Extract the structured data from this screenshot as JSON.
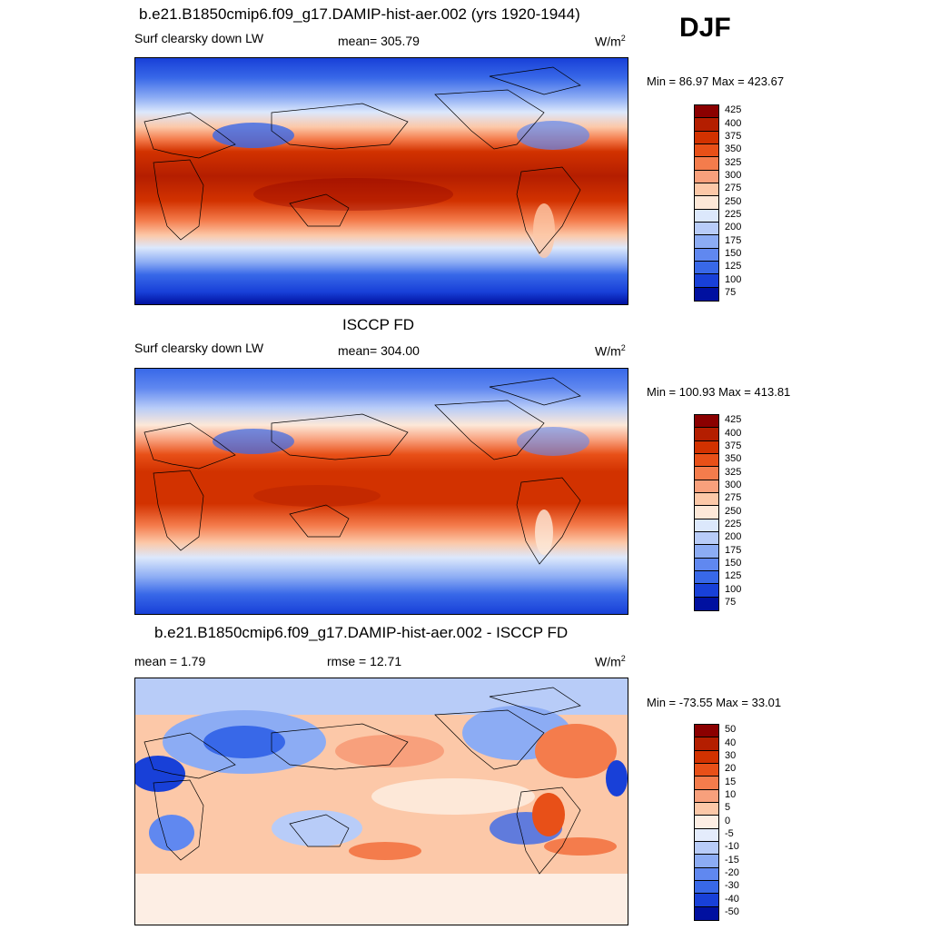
{
  "season": "DJF",
  "unit_base": "W/m",
  "unit_exp": "2",
  "panels": [
    {
      "title": "b.e21.B1850cmip6.f09_g17.DAMIP-hist-aer.002 (yrs 1920-1944)",
      "left_label": "Surf clearsky down LW",
      "center_label": "mean= 305.79",
      "minmax": "Min =  86.97 Max = 423.67",
      "levels": [
        "425",
        "400",
        "375",
        "350",
        "325",
        "300",
        "275",
        "250",
        "225",
        "200",
        "175",
        "150",
        "125",
        "100",
        "75"
      ],
      "colors": [
        "#8b0000",
        "#b41e00",
        "#d23200",
        "#e85018",
        "#f47c4c",
        "#f8a07c",
        "#fcc8a8",
        "#fde8d8",
        "#dce8fc",
        "#b8ccf8",
        "#8cacf4",
        "#6088f0",
        "#3868e8",
        "#1840d8",
        "#0010a0"
      ]
    },
    {
      "title": "ISCCP FD",
      "left_label": "Surf clearsky down LW",
      "center_label": "mean= 304.00",
      "minmax": "Min = 100.93 Max = 413.81",
      "levels": [
        "425",
        "400",
        "375",
        "350",
        "325",
        "300",
        "275",
        "250",
        "225",
        "200",
        "175",
        "150",
        "125",
        "100",
        "75"
      ],
      "colors": [
        "#8b0000",
        "#b41e00",
        "#d23200",
        "#e85018",
        "#f47c4c",
        "#f8a07c",
        "#fcc8a8",
        "#fde8d8",
        "#dce8fc",
        "#b8ccf8",
        "#8cacf4",
        "#6088f0",
        "#3868e8",
        "#1840d8",
        "#0010a0"
      ]
    },
    {
      "title": "b.e21.B1850cmip6.f09_g17.DAMIP-hist-aer.002 - ISCCP FD",
      "left_label": "mean =   1.79",
      "center_label": "rmse =  12.71",
      "minmax": "Min = -73.55 Max =  33.01",
      "levels": [
        "50",
        "40",
        "30",
        "20",
        "15",
        "10",
        "5",
        "0",
        "-5",
        "-10",
        "-15",
        "-20",
        "-30",
        "-40",
        "-50"
      ],
      "colors": [
        "#8b0000",
        "#b41e00",
        "#d23200",
        "#e85018",
        "#f47c4c",
        "#f8a07c",
        "#fcc8a8",
        "#fdeee4",
        "#e4ecfc",
        "#b8ccf8",
        "#8cacf4",
        "#6088f0",
        "#3868e8",
        "#1840d8",
        "#0010a0"
      ]
    }
  ]
}
